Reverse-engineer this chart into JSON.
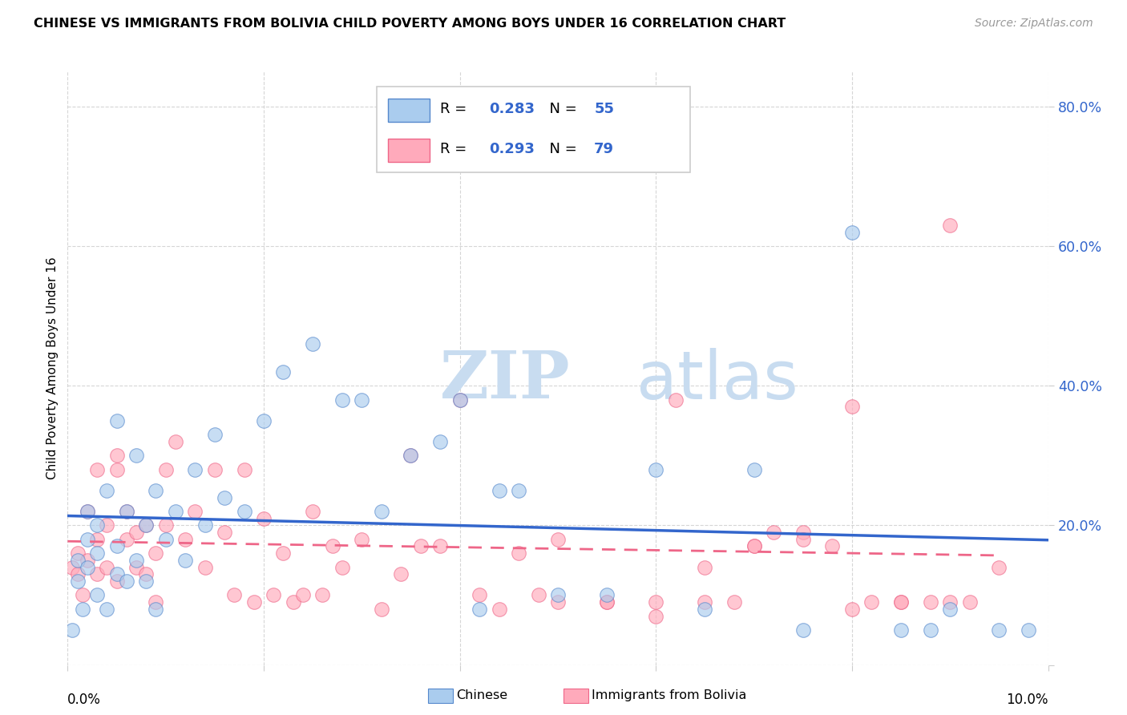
{
  "title": "CHINESE VS IMMIGRANTS FROM BOLIVIA CHILD POVERTY AMONG BOYS UNDER 16 CORRELATION CHART",
  "source": "Source: ZipAtlas.com",
  "ylabel": "Child Poverty Among Boys Under 16",
  "chinese_R": 0.283,
  "chinese_N": 55,
  "bolivia_R": 0.293,
  "bolivia_N": 79,
  "xlim": [
    0.0,
    0.1
  ],
  "ylim": [
    0.0,
    0.85
  ],
  "color_chinese_face": "#AACCEE",
  "color_chinese_edge": "#5588CC",
  "color_bolivia_face": "#FFAABB",
  "color_bolivia_edge": "#EE6688",
  "color_line_chinese": "#3366CC",
  "color_line_bolivia": "#EE6688",
  "chinese_x": [
    0.0005,
    0.001,
    0.001,
    0.0015,
    0.002,
    0.002,
    0.002,
    0.003,
    0.003,
    0.003,
    0.004,
    0.004,
    0.005,
    0.005,
    0.005,
    0.006,
    0.006,
    0.007,
    0.007,
    0.008,
    0.008,
    0.009,
    0.009,
    0.01,
    0.011,
    0.012,
    0.013,
    0.014,
    0.015,
    0.016,
    0.018,
    0.02,
    0.022,
    0.025,
    0.028,
    0.03,
    0.032,
    0.035,
    0.038,
    0.04,
    0.042,
    0.044,
    0.046,
    0.05,
    0.055,
    0.06,
    0.065,
    0.07,
    0.075,
    0.08,
    0.085,
    0.088,
    0.09,
    0.095,
    0.098
  ],
  "chinese_y": [
    0.05,
    0.12,
    0.15,
    0.08,
    0.14,
    0.18,
    0.22,
    0.1,
    0.16,
    0.2,
    0.08,
    0.25,
    0.13,
    0.17,
    0.35,
    0.12,
    0.22,
    0.15,
    0.3,
    0.12,
    0.2,
    0.08,
    0.25,
    0.18,
    0.22,
    0.15,
    0.28,
    0.2,
    0.33,
    0.24,
    0.22,
    0.35,
    0.42,
    0.46,
    0.38,
    0.38,
    0.22,
    0.3,
    0.32,
    0.38,
    0.08,
    0.25,
    0.25,
    0.1,
    0.1,
    0.28,
    0.08,
    0.28,
    0.05,
    0.62,
    0.05,
    0.05,
    0.08,
    0.05,
    0.05
  ],
  "bolivia_x": [
    0.0005,
    0.001,
    0.001,
    0.0015,
    0.002,
    0.002,
    0.003,
    0.003,
    0.003,
    0.004,
    0.004,
    0.005,
    0.005,
    0.005,
    0.006,
    0.006,
    0.007,
    0.007,
    0.008,
    0.008,
    0.009,
    0.009,
    0.01,
    0.01,
    0.011,
    0.012,
    0.013,
    0.014,
    0.015,
    0.016,
    0.017,
    0.018,
    0.019,
    0.02,
    0.021,
    0.022,
    0.023,
    0.024,
    0.025,
    0.026,
    0.027,
    0.028,
    0.03,
    0.032,
    0.034,
    0.035,
    0.036,
    0.038,
    0.04,
    0.042,
    0.044,
    0.046,
    0.048,
    0.05,
    0.055,
    0.06,
    0.062,
    0.065,
    0.068,
    0.07,
    0.072,
    0.075,
    0.078,
    0.08,
    0.082,
    0.085,
    0.088,
    0.09,
    0.092,
    0.095,
    0.05,
    0.055,
    0.06,
    0.065,
    0.07,
    0.075,
    0.08,
    0.085,
    0.09
  ],
  "bolivia_y": [
    0.14,
    0.16,
    0.13,
    0.1,
    0.15,
    0.22,
    0.13,
    0.18,
    0.28,
    0.14,
    0.2,
    0.12,
    0.28,
    0.3,
    0.18,
    0.22,
    0.14,
    0.19,
    0.13,
    0.2,
    0.09,
    0.16,
    0.2,
    0.28,
    0.32,
    0.18,
    0.22,
    0.14,
    0.28,
    0.19,
    0.1,
    0.28,
    0.09,
    0.21,
    0.1,
    0.16,
    0.09,
    0.1,
    0.22,
    0.1,
    0.17,
    0.14,
    0.18,
    0.08,
    0.13,
    0.3,
    0.17,
    0.17,
    0.38,
    0.1,
    0.08,
    0.16,
    0.1,
    0.18,
    0.09,
    0.09,
    0.38,
    0.09,
    0.09,
    0.17,
    0.19,
    0.19,
    0.17,
    0.37,
    0.09,
    0.09,
    0.09,
    0.63,
    0.09,
    0.14,
    0.09,
    0.09,
    0.07,
    0.14,
    0.17,
    0.18,
    0.08,
    0.09,
    0.09
  ]
}
